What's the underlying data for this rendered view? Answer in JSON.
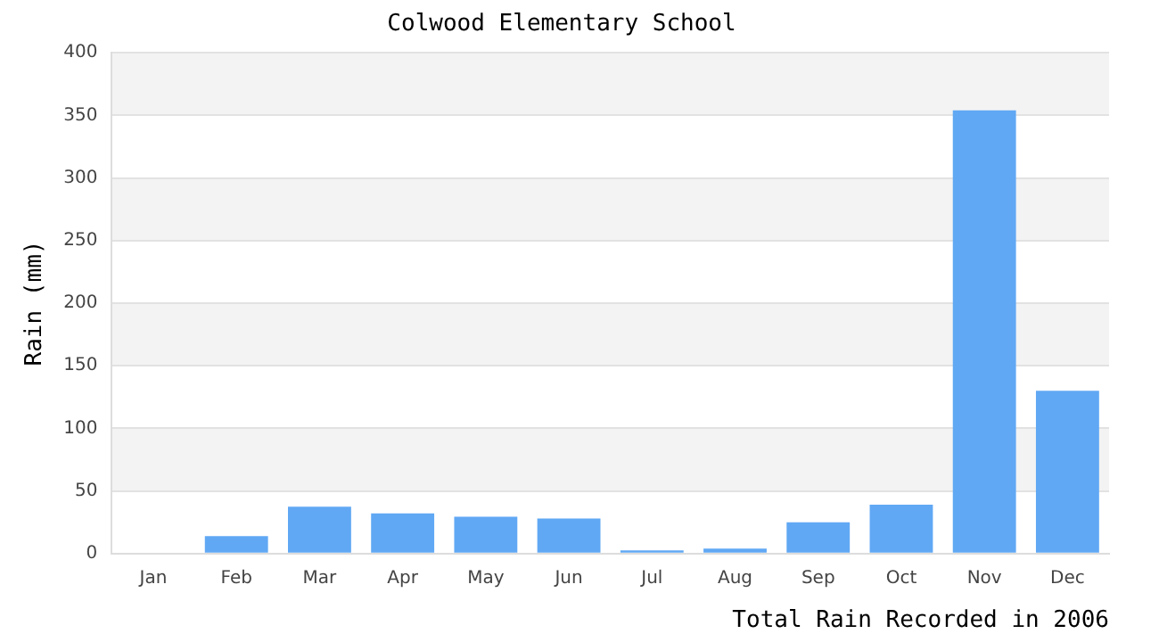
{
  "chart_data": {
    "type": "bar",
    "title": "Colwood Elementary School",
    "xlabel": "Total Rain Recorded in 2006",
    "ylabel": "Rain (mm)",
    "categories": [
      "Jan",
      "Feb",
      "Mar",
      "Apr",
      "May",
      "Jun",
      "Jul",
      "Aug",
      "Sep",
      "Oct",
      "Nov",
      "Dec"
    ],
    "values": [
      0,
      14,
      37.5,
      32,
      29.5,
      28,
      2.5,
      4,
      25,
      39,
      354,
      130
    ],
    "color": "#60a8f4",
    "ylim": [
      0,
      400
    ],
    "yticks": [
      0,
      50,
      100,
      150,
      200,
      250,
      300,
      350,
      400
    ],
    "grid": "y"
  }
}
